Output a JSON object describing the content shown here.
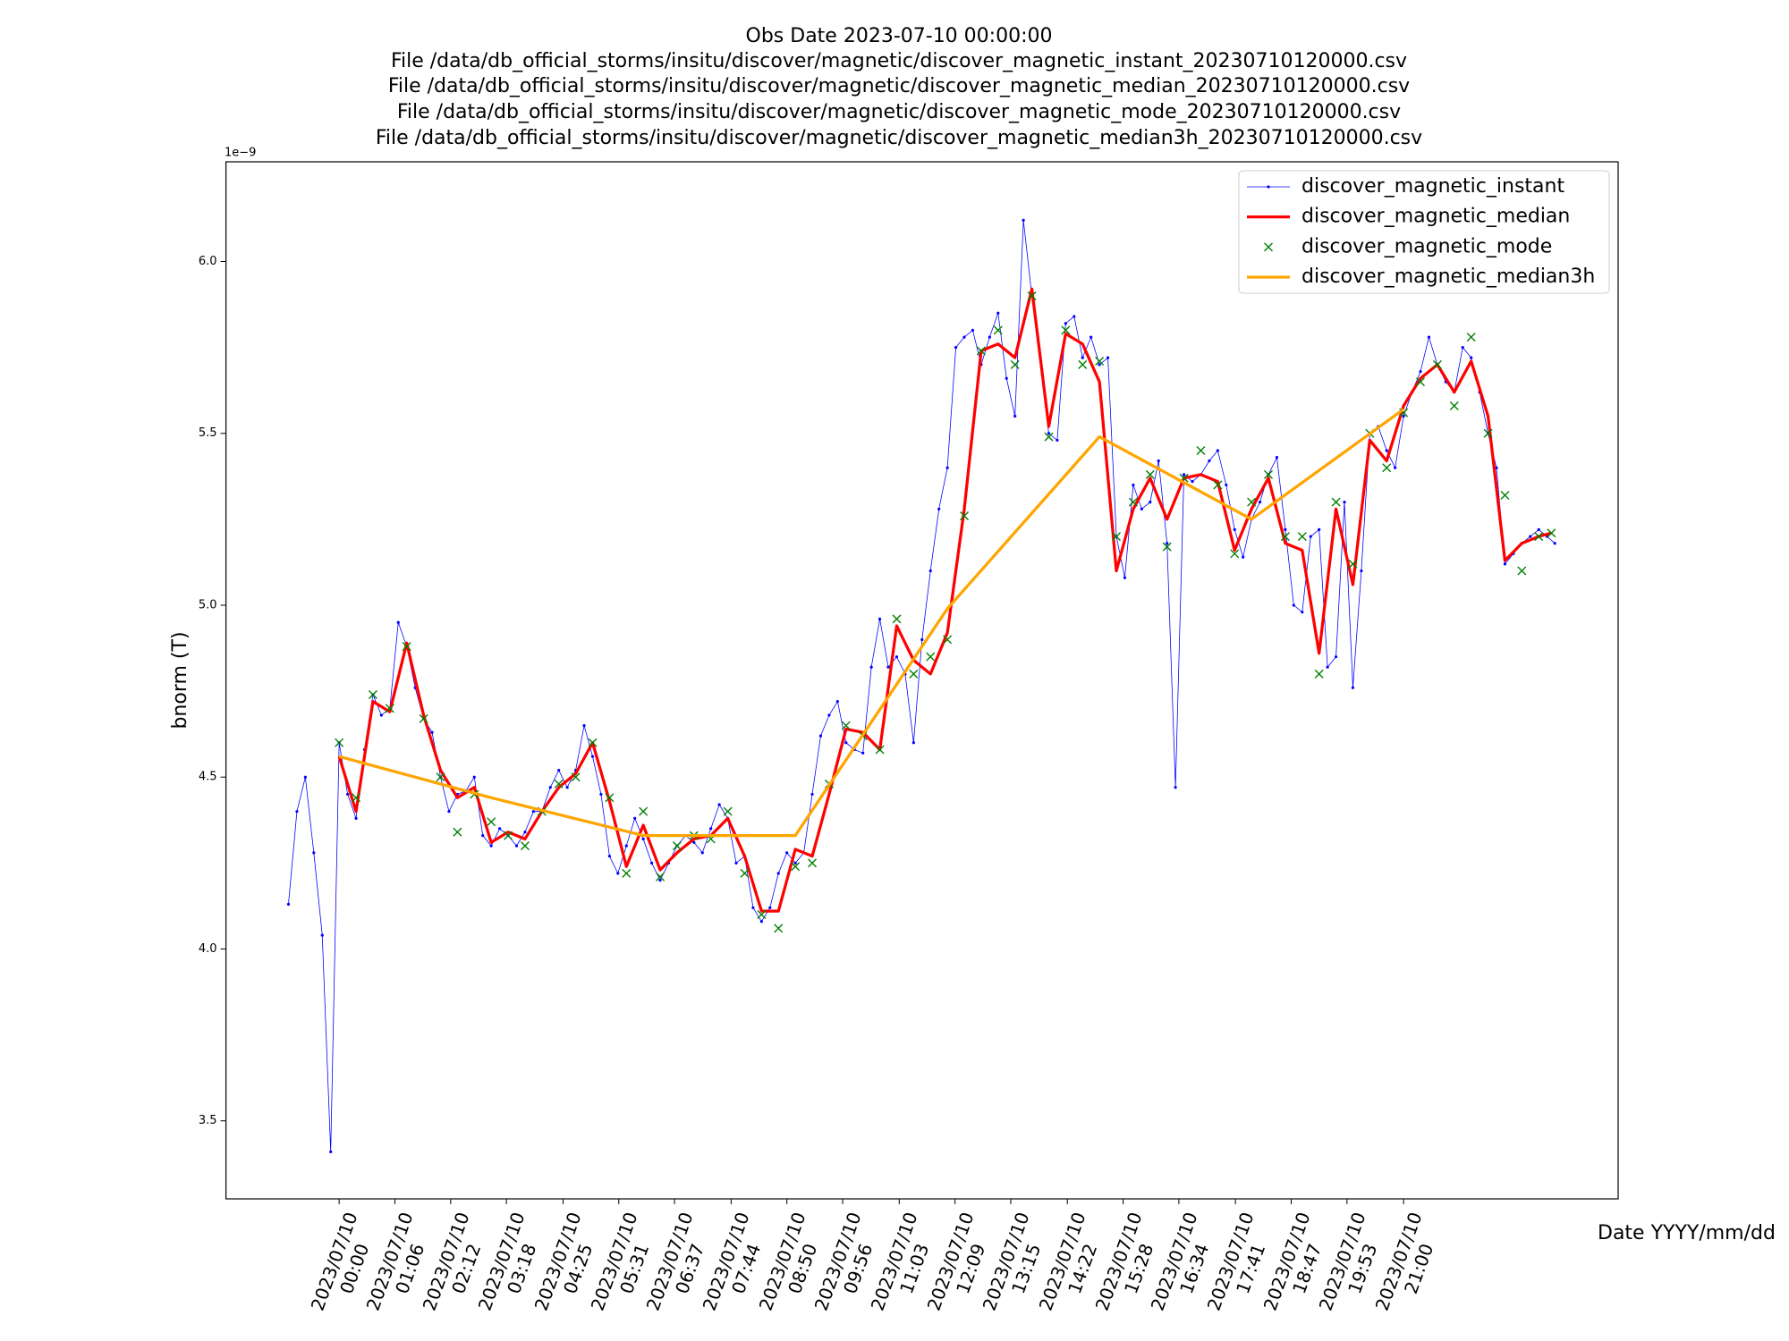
{
  "chart_data": {
    "type": "line",
    "title": [
      "Obs Date 2023-07-10 00:00:00",
      "File /data/db_official_storms/insitu/discover/magnetic/discover_magnetic_instant_20230710120000.csv",
      "File /data/db_official_storms/insitu/discover/magnetic/discover_magnetic_median_20230710120000.csv",
      "File /data/db_official_storms/insitu/discover/magnetic/discover_magnetic_mode_20230710120000.csv",
      "File /data/db_official_storms/insitu/discover/magnetic/discover_magnetic_median3h_20230710120000.csv"
    ],
    "xlabel": "Date YYYY/mm/dd",
    "ylabel": "bnorm (T)",
    "y_offset_label": "1e−9",
    "xlim": [
      "2023/07/09 21:46",
      "2023/07/11 01:14"
    ],
    "ylim": [
      3.273,
      6.29
    ],
    "yticks": [
      3.5,
      {
        "value": 4,
        "label": "4.0"
      },
      4.5,
      {
        "value": 5,
        "label": "5.0"
      },
      5.5,
      {
        "value": 6,
        "label": "6.0"
      }
    ],
    "xticks": [
      {
        "value": "2023/07/10 00:00",
        "label": "2023/07/10\n00:00"
      },
      {
        "value": "2023/07/10 01:06",
        "label": "2023/07/10\n01:06"
      },
      {
        "value": "2023/07/10 02:12",
        "label": "2023/07/10\n02:12"
      },
      {
        "value": "2023/07/10 03:18",
        "label": "2023/07/10\n03:18"
      },
      {
        "value": "2023/07/10 04:25",
        "label": "2023/07/10\n04:25"
      },
      {
        "value": "2023/07/10 05:31",
        "label": "2023/07/10\n05:31"
      },
      {
        "value": "2023/07/10 06:37",
        "label": "2023/07/10\n06:37"
      },
      {
        "value": "2023/07/10 07:44",
        "label": "2023/07/10\n07:44"
      },
      {
        "value": "2023/07/10 08:50",
        "label": "2023/07/10\n08:50"
      },
      {
        "value": "2023/07/10 09:56",
        "label": "2023/07/10\n09:56"
      },
      {
        "value": "2023/07/10 11:03",
        "label": "2023/07/10\n11:03"
      },
      {
        "value": "2023/07/10 12:09",
        "label": "2023/07/10\n12:09"
      },
      {
        "value": "2023/07/10 13:15",
        "label": "2023/07/10\n13:15"
      },
      {
        "value": "2023/07/10 14:22",
        "label": "2023/07/10\n14:22"
      },
      {
        "value": "2023/07/10 15:28",
        "label": "2023/07/10\n15:28"
      },
      {
        "value": "2023/07/10 16:34",
        "label": "2023/07/10\n16:34"
      },
      {
        "value": "2023/07/10 17:41",
        "label": "2023/07/10\n17:41"
      },
      {
        "value": "2023/07/10 18:47",
        "label": "2023/07/10\n18:47"
      },
      {
        "value": "2023/07/10 19:53",
        "label": "2023/07/10\n19:53"
      },
      {
        "value": "2023/07/10 21:00",
        "label": "2023/07/10\n21:00"
      }
    ],
    "legend": "upper right",
    "grid": false,
    "series": [
      {
        "name": "discover_magnetic_instant",
        "color": "#0000ff",
        "linewidth": 0.6,
        "marker": ".",
        "x": [
          "2023/07/09 23:00",
          "2023/07/09 23:10",
          "2023/07/09 23:20",
          "2023/07/09 23:30",
          "2023/07/09 23:40",
          "2023/07/09 23:50",
          "2023/07/10 00:00",
          "2023/07/10 00:10",
          "2023/07/10 00:20",
          "2023/07/10 00:30",
          "2023/07/10 00:40",
          "2023/07/10 00:50",
          "2023/07/10 01:00",
          "2023/07/10 01:10",
          "2023/07/10 01:20",
          "2023/07/10 01:30",
          "2023/07/10 01:40",
          "2023/07/10 01:50",
          "2023/07/10 02:00",
          "2023/07/10 02:10",
          "2023/07/10 02:20",
          "2023/07/10 02:30",
          "2023/07/10 02:40",
          "2023/07/10 02:50",
          "2023/07/10 03:00",
          "2023/07/10 03:10",
          "2023/07/10 03:20",
          "2023/07/10 03:30",
          "2023/07/10 03:40",
          "2023/07/10 03:50",
          "2023/07/10 04:00",
          "2023/07/10 04:10",
          "2023/07/10 04:20",
          "2023/07/10 04:30",
          "2023/07/10 04:40",
          "2023/07/10 04:50",
          "2023/07/10 05:00",
          "2023/07/10 05:10",
          "2023/07/10 05:20",
          "2023/07/10 05:30",
          "2023/07/10 05:40",
          "2023/07/10 05:50",
          "2023/07/10 06:00",
          "2023/07/10 06:10",
          "2023/07/10 06:20",
          "2023/07/10 06:30",
          "2023/07/10 06:40",
          "2023/07/10 06:50",
          "2023/07/10 07:00",
          "2023/07/10 07:10",
          "2023/07/10 07:20",
          "2023/07/10 07:30",
          "2023/07/10 07:40",
          "2023/07/10 07:50",
          "2023/07/10 08:00",
          "2023/07/10 08:10",
          "2023/07/10 08:20",
          "2023/07/10 08:30",
          "2023/07/10 08:40",
          "2023/07/10 08:50",
          "2023/07/10 09:00",
          "2023/07/10 09:10",
          "2023/07/10 09:20",
          "2023/07/10 09:30",
          "2023/07/10 09:40",
          "2023/07/10 09:50",
          "2023/07/10 10:00",
          "2023/07/10 10:10",
          "2023/07/10 10:20",
          "2023/07/10 10:30",
          "2023/07/10 10:40",
          "2023/07/10 10:50",
          "2023/07/10 11:00",
          "2023/07/10 11:10",
          "2023/07/10 11:20",
          "2023/07/10 11:30",
          "2023/07/10 11:40",
          "2023/07/10 11:50",
          "2023/07/10 12:00",
          "2023/07/10 12:10",
          "2023/07/10 12:20",
          "2023/07/10 12:30",
          "2023/07/10 12:40",
          "2023/07/10 12:50",
          "2023/07/10 13:00",
          "2023/07/10 13:10",
          "2023/07/10 13:20",
          "2023/07/10 13:30",
          "2023/07/10 13:40",
          "2023/07/10 13:50",
          "2023/07/10 14:00",
          "2023/07/10 14:10",
          "2023/07/10 14:20",
          "2023/07/10 14:30",
          "2023/07/10 14:40",
          "2023/07/10 14:50",
          "2023/07/10 15:00",
          "2023/07/10 15:10",
          "2023/07/10 15:20",
          "2023/07/10 15:30",
          "2023/07/10 15:40",
          "2023/07/10 15:50",
          "2023/07/10 16:00",
          "2023/07/10 16:10",
          "2023/07/10 16:20",
          "2023/07/10 16:30",
          "2023/07/10 16:40",
          "2023/07/10 16:50",
          "2023/07/10 17:00",
          "2023/07/10 17:10",
          "2023/07/10 17:20",
          "2023/07/10 17:30",
          "2023/07/10 17:40",
          "2023/07/10 17:50",
          "2023/07/10 18:00",
          "2023/07/10 18:10",
          "2023/07/10 18:20",
          "2023/07/10 18:30",
          "2023/07/10 18:40",
          "2023/07/10 18:50",
          "2023/07/10 19:00",
          "2023/07/10 19:10",
          "2023/07/10 19:20",
          "2023/07/10 19:30",
          "2023/07/10 19:40",
          "2023/07/10 19:50",
          "2023/07/10 20:00",
          "2023/07/10 20:10",
          "2023/07/10 20:20",
          "2023/07/10 20:30",
          "2023/07/10 20:40",
          "2023/07/10 20:50",
          "2023/07/10 21:00",
          "2023/07/10 21:10",
          "2023/07/10 21:20",
          "2023/07/10 21:30",
          "2023/07/10 21:40",
          "2023/07/10 21:50",
          "2023/07/10 22:00",
          "2023/07/10 22:10",
          "2023/07/10 22:20",
          "2023/07/10 22:30",
          "2023/07/10 22:40",
          "2023/07/10 22:50",
          "2023/07/10 23:00",
          "2023/07/10 23:10",
          "2023/07/10 23:20",
          "2023/07/10 23:30",
          "2023/07/10 23:40",
          "2023/07/10 23:50",
          "2023/07/10 23:59"
        ],
        "values": [
          4.13,
          4.4,
          4.5,
          4.28,
          4.04,
          3.41,
          4.6,
          4.45,
          4.38,
          4.58,
          4.74,
          4.68,
          4.7,
          4.95,
          4.88,
          4.76,
          4.67,
          4.63,
          4.5,
          4.4,
          4.45,
          4.46,
          4.5,
          4.33,
          4.3,
          4.35,
          4.33,
          4.3,
          4.34,
          4.4,
          4.4,
          4.47,
          4.52,
          4.47,
          4.52,
          4.65,
          4.56,
          4.45,
          4.27,
          4.22,
          4.3,
          4.38,
          4.32,
          4.25,
          4.2,
          4.25,
          4.3,
          4.33,
          4.31,
          4.28,
          4.35,
          4.42,
          4.38,
          4.25,
          4.27,
          4.12,
          4.08,
          4.12,
          4.22,
          4.28,
          4.25,
          4.28,
          4.45,
          4.62,
          4.68,
          4.72,
          4.6,
          4.58,
          4.57,
          4.82,
          4.96,
          4.82,
          4.85,
          4.8,
          4.6,
          4.9,
          5.1,
          5.28,
          5.4,
          5.75,
          5.78,
          5.8,
          5.7,
          5.78,
          5.85,
          5.66,
          5.55,
          6.12,
          5.9,
          5.72,
          5.5,
          5.48,
          5.82,
          5.84,
          5.72,
          5.78,
          5.7,
          5.72,
          5.2,
          5.08,
          5.35,
          5.28,
          5.3,
          5.42,
          5.18,
          4.47,
          5.38,
          5.36,
          5.38,
          5.42,
          5.45,
          5.35,
          5.22,
          5.14,
          5.25,
          5.3,
          5.38,
          5.43,
          5.22,
          5.0,
          4.98,
          5.2,
          5.22,
          4.82,
          4.85,
          5.3,
          4.76,
          5.1,
          5.5,
          5.52,
          5.45,
          5.4,
          5.55,
          5.62,
          5.68,
          5.78,
          5.7,
          5.65,
          5.62,
          5.75,
          5.72,
          5.62,
          5.5,
          5.4,
          5.12,
          5.15,
          5.18,
          5.2,
          5.22,
          5.2,
          5.18
        ]
      },
      {
        "name": "discover_magnetic_median",
        "color": "#ff0000",
        "linewidth": 2.5,
        "x": [
          "2023/07/10 00:00",
          "2023/07/10 00:20",
          "2023/07/10 00:40",
          "2023/07/10 01:00",
          "2023/07/10 01:20",
          "2023/07/10 01:40",
          "2023/07/10 02:00",
          "2023/07/10 02:20",
          "2023/07/10 02:40",
          "2023/07/10 03:00",
          "2023/07/10 03:20",
          "2023/07/10 03:40",
          "2023/07/10 04:00",
          "2023/07/10 04:20",
          "2023/07/10 04:40",
          "2023/07/10 05:00",
          "2023/07/10 05:20",
          "2023/07/10 05:40",
          "2023/07/10 06:00",
          "2023/07/10 06:20",
          "2023/07/10 06:40",
          "2023/07/10 07:00",
          "2023/07/10 07:20",
          "2023/07/10 07:40",
          "2023/07/10 08:00",
          "2023/07/10 08:20",
          "2023/07/10 08:40",
          "2023/07/10 09:00",
          "2023/07/10 09:20",
          "2023/07/10 09:40",
          "2023/07/10 10:00",
          "2023/07/10 10:20",
          "2023/07/10 10:40",
          "2023/07/10 11:00",
          "2023/07/10 11:20",
          "2023/07/10 11:40",
          "2023/07/10 12:00",
          "2023/07/10 12:20",
          "2023/07/10 12:40",
          "2023/07/10 13:00",
          "2023/07/10 13:20",
          "2023/07/10 13:40",
          "2023/07/10 14:00",
          "2023/07/10 14:20",
          "2023/07/10 14:40",
          "2023/07/10 15:00",
          "2023/07/10 15:20",
          "2023/07/10 15:40",
          "2023/07/10 16:00",
          "2023/07/10 16:20",
          "2023/07/10 16:40",
          "2023/07/10 17:00",
          "2023/07/10 17:20",
          "2023/07/10 17:40",
          "2023/07/10 18:00",
          "2023/07/10 18:20",
          "2023/07/10 18:40",
          "2023/07/10 19:00",
          "2023/07/10 19:20",
          "2023/07/10 19:40",
          "2023/07/10 20:00",
          "2023/07/10 20:20",
          "2023/07/10 20:40",
          "2023/07/10 21:00",
          "2023/07/10 21:20",
          "2023/07/10 21:40",
          "2023/07/10 22:00",
          "2023/07/10 22:20",
          "2023/07/10 22:40",
          "2023/07/10 23:00",
          "2023/07/10 23:20",
          "2023/07/10 23:40",
          "2023/07/10 23:55"
        ],
        "values": [
          4.56,
          4.4,
          4.72,
          4.69,
          4.89,
          4.68,
          4.52,
          4.44,
          4.47,
          4.31,
          4.34,
          4.32,
          4.4,
          4.47,
          4.51,
          4.6,
          4.43,
          4.24,
          4.36,
          4.23,
          4.28,
          4.32,
          4.33,
          4.38,
          4.27,
          4.11,
          4.11,
          4.29,
          4.27,
          4.45,
          4.64,
          4.63,
          4.58,
          4.94,
          4.84,
          4.8,
          4.92,
          5.28,
          5.74,
          5.76,
          5.72,
          5.92,
          5.52,
          5.79,
          5.76,
          5.65,
          5.1,
          5.28,
          5.37,
          5.25,
          5.37,
          5.38,
          5.36,
          5.16,
          5.28,
          5.37,
          5.18,
          5.16,
          4.86,
          5.28,
          5.06,
          5.48,
          5.42,
          5.58,
          5.66,
          5.7,
          5.62,
          5.71,
          5.55,
          5.13,
          5.18,
          5.2,
          5.21
        ]
      },
      {
        "name": "discover_magnetic_mode",
        "color": "#008000",
        "marker": "x",
        "linestyle": "none",
        "x": [
          "2023/07/10 00:00",
          "2023/07/10 00:20",
          "2023/07/10 00:40",
          "2023/07/10 01:00",
          "2023/07/10 01:20",
          "2023/07/10 01:40",
          "2023/07/10 02:00",
          "2023/07/10 02:20",
          "2023/07/10 02:40",
          "2023/07/10 03:00",
          "2023/07/10 03:20",
          "2023/07/10 03:40",
          "2023/07/10 04:00",
          "2023/07/10 04:20",
          "2023/07/10 04:40",
          "2023/07/10 05:00",
          "2023/07/10 05:20",
          "2023/07/10 05:40",
          "2023/07/10 06:00",
          "2023/07/10 06:20",
          "2023/07/10 06:40",
          "2023/07/10 07:00",
          "2023/07/10 07:20",
          "2023/07/10 07:40",
          "2023/07/10 08:00",
          "2023/07/10 08:20",
          "2023/07/10 08:40",
          "2023/07/10 09:00",
          "2023/07/10 09:20",
          "2023/07/10 09:40",
          "2023/07/10 10:00",
          "2023/07/10 10:20",
          "2023/07/10 10:40",
          "2023/07/10 11:00",
          "2023/07/10 11:20",
          "2023/07/10 11:40",
          "2023/07/10 12:00",
          "2023/07/10 12:20",
          "2023/07/10 12:40",
          "2023/07/10 13:00",
          "2023/07/10 13:20",
          "2023/07/10 13:40",
          "2023/07/10 14:00",
          "2023/07/10 14:20",
          "2023/07/10 14:40",
          "2023/07/10 15:00",
          "2023/07/10 15:20",
          "2023/07/10 15:40",
          "2023/07/10 16:00",
          "2023/07/10 16:20",
          "2023/07/10 16:40",
          "2023/07/10 17:00",
          "2023/07/10 17:20",
          "2023/07/10 17:40",
          "2023/07/10 18:00",
          "2023/07/10 18:20",
          "2023/07/10 18:40",
          "2023/07/10 19:00",
          "2023/07/10 19:20",
          "2023/07/10 19:40",
          "2023/07/10 20:00",
          "2023/07/10 20:20",
          "2023/07/10 20:40",
          "2023/07/10 21:00",
          "2023/07/10 21:20",
          "2023/07/10 21:40",
          "2023/07/10 22:00",
          "2023/07/10 22:20",
          "2023/07/10 22:40",
          "2023/07/10 23:00",
          "2023/07/10 23:20",
          "2023/07/10 23:40",
          "2023/07/10 23:55"
        ],
        "values": [
          4.6,
          4.44,
          4.74,
          4.7,
          4.88,
          4.67,
          4.5,
          4.34,
          4.45,
          4.37,
          4.33,
          4.3,
          4.4,
          4.48,
          4.5,
          4.6,
          4.44,
          4.22,
          4.4,
          4.21,
          4.3,
          4.33,
          4.32,
          4.4,
          4.22,
          4.1,
          4.06,
          4.24,
          4.25,
          4.48,
          4.65,
          4.62,
          4.58,
          4.96,
          4.8,
          4.85,
          4.9,
          5.26,
          5.74,
          5.8,
          5.7,
          5.9,
          5.49,
          5.8,
          5.7,
          5.71,
          5.2,
          5.3,
          5.38,
          5.17,
          5.37,
          5.45,
          5.35,
          5.15,
          5.3,
          5.38,
          5.2,
          5.2,
          4.8,
          5.3,
          5.12,
          5.5,
          5.4,
          5.56,
          5.65,
          5.7,
          5.58,
          5.78,
          5.5,
          5.32,
          5.1,
          5.2,
          5.21
        ]
      },
      {
        "name": "discover_magnetic_median3h",
        "color": "#ffa500",
        "linewidth": 2.5,
        "x": [
          "2023/07/10 00:00",
          "2023/07/10 03:00",
          "2023/07/10 06:00",
          "2023/07/10 09:00",
          "2023/07/10 12:00",
          "2023/07/10 15:00",
          "2023/07/10 18:00",
          "2023/07/10 21:00"
        ],
        "values": [
          4.56,
          4.44,
          4.33,
          4.33,
          4.99,
          5.49,
          5.25,
          5.57
        ]
      }
    ]
  }
}
